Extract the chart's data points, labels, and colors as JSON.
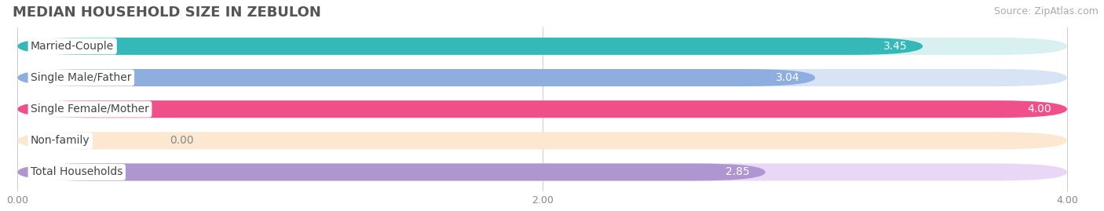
{
  "title": "MEDIAN HOUSEHOLD SIZE IN ZEBULON",
  "source": "Source: ZipAtlas.com",
  "categories": [
    "Married-Couple",
    "Single Male/Father",
    "Single Female/Mother",
    "Non-family",
    "Total Households"
  ],
  "values": [
    3.45,
    3.04,
    4.0,
    0.0,
    2.85
  ],
  "bar_colors": [
    "#35b8b8",
    "#8faee0",
    "#f0508a",
    "#f5c896",
    "#b096d0"
  ],
  "bg_bar_colors": [
    "#d8f0f0",
    "#d8e4f5",
    "#fcdde8",
    "#fce8d0",
    "#e8d8f5"
  ],
  "xlim_min": 0.0,
  "xlim_max": 4.0,
  "xticks": [
    0.0,
    2.0,
    4.0
  ],
  "xtick_labels": [
    "0.00",
    "2.00",
    "4.00"
  ],
  "value_labels": [
    "3.45",
    "3.04",
    "4.00",
    "0.00",
    "2.85"
  ],
  "title_fontsize": 13,
  "source_fontsize": 9,
  "label_fontsize": 10,
  "value_fontsize": 10,
  "bg_color": "#ffffff",
  "plot_bg_color": "#f0f0f5"
}
